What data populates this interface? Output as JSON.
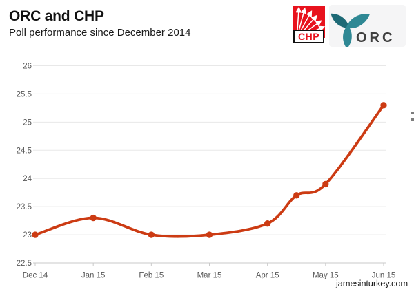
{
  "header": {
    "title": "ORC and CHP",
    "subtitle": "Poll performance since December 2014"
  },
  "logos": {
    "chp": {
      "label": "CHP",
      "red": "#e8121d",
      "ray_color": "#ffffff"
    },
    "orc": {
      "label": "ORC",
      "teal_dark": "#1e6a76",
      "teal": "#2f8894",
      "text_color": "#3f3f3f",
      "bg": "#f5f5f6"
    }
  },
  "footer": {
    "site": "jamesinturkey.com"
  },
  "chart_data": {
    "type": "line",
    "title": "ORC and CHP",
    "subtitle": "Poll performance since December 2014",
    "categories": [
      "Dec 14",
      "Jan 15",
      "Feb 15",
      "Mar 15",
      "Apr 15",
      "May 15",
      "Jun 15"
    ],
    "x": [
      0,
      1,
      2,
      3,
      4,
      4.5,
      5,
      6
    ],
    "values": [
      23.0,
      23.3,
      23.0,
      23.0,
      23.2,
      23.7,
      23.9,
      25.3
    ],
    "ylim": [
      22.5,
      26
    ],
    "y_ticks": [
      "26",
      "25.5",
      "25",
      "24.5",
      "24",
      "23.5",
      "23",
      "22.5"
    ],
    "grid": "horizontal",
    "legend": "none",
    "line_color": "#cc3b13",
    "marker": "circle",
    "grid_color": "#e8e8e8",
    "axis_color": "#c9c9c9",
    "tick_label_color": "#595959"
  }
}
